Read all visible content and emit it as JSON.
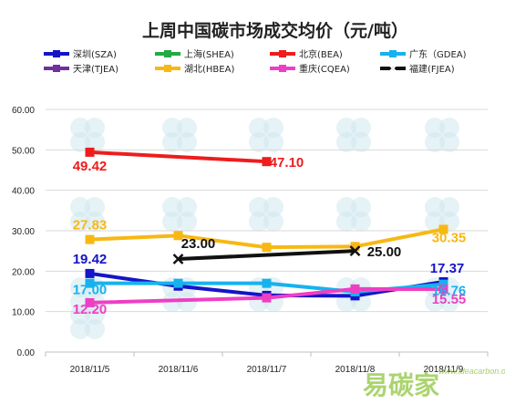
{
  "chart_data": {
    "type": "line",
    "title": "上周中国碳市场成交均价（元/吨）",
    "categories": [
      "2018/11/5",
      "2018/11/6",
      "2018/11/7",
      "2018/11/8",
      "2018/11/9"
    ],
    "ylim": [
      0,
      60
    ],
    "yticks": [
      "0.00",
      "10.00",
      "20.00",
      "30.00",
      "40.00",
      "50.00",
      "60.00"
    ],
    "ytick_values": [
      0,
      10,
      20,
      30,
      40,
      50,
      60
    ],
    "legend_placement": "top",
    "series": [
      {
        "name": "深圳(SZA)",
        "color": "#1414c8",
        "marker": "square",
        "values": [
          19.42,
          16.3,
          14.0,
          13.9,
          17.37
        ],
        "labels": [
          {
            "index": 0,
            "text": "19.42"
          },
          {
            "index": 4,
            "text": "17.37"
          }
        ]
      },
      {
        "name": "上海(SHEA)",
        "color": "#22aa44",
        "marker": "square",
        "values": [
          null,
          null,
          null,
          null,
          null
        ],
        "labels": []
      },
      {
        "name": "北京(BEA)",
        "color": "#ee1c1c",
        "marker": "square",
        "values": [
          49.42,
          null,
          47.1,
          null,
          null
        ],
        "labels": [
          {
            "index": 0,
            "text": "49.42"
          },
          {
            "index": 2,
            "text": "47.10"
          }
        ]
      },
      {
        "name": "广东（GDEA)",
        "color": "#17b2ee",
        "marker": "square",
        "values": [
          17.0,
          17.0,
          17.0,
          14.9,
          16.76
        ],
        "labels": [
          {
            "index": 0,
            "text": "17.00"
          },
          {
            "index": 4,
            "text": "16.76"
          }
        ]
      },
      {
        "name": "天津(TJEA)",
        "color": "#7030a0",
        "marker": "square",
        "values": [
          null,
          null,
          null,
          null,
          null
        ],
        "labels": []
      },
      {
        "name": "湖北(HBEA)",
        "color": "#f7b814",
        "marker": "square",
        "values": [
          27.83,
          28.8,
          25.9,
          26.1,
          30.35
        ],
        "labels": [
          {
            "index": 0,
            "text": "27.83"
          },
          {
            "index": 4,
            "text": "30.35"
          }
        ]
      },
      {
        "name": "重庆(CQEA)",
        "color": "#ee3fc4",
        "marker": "square",
        "values": [
          12.2,
          null,
          13.4,
          15.6,
          15.55
        ],
        "labels": [
          {
            "index": 0,
            "text": "12.20"
          },
          {
            "index": 4,
            "text": "15.55"
          }
        ]
      },
      {
        "name": "福建(FJEA)",
        "color": "#111111",
        "marker": "x",
        "values": [
          null,
          23.0,
          null,
          25.0,
          null
        ],
        "labels": [
          {
            "index": 1,
            "text": "23.00"
          },
          {
            "index": 3,
            "text": "25.00"
          }
        ]
      }
    ]
  },
  "watermark": {
    "brand": "易碳家",
    "url": "www.ideacarbon.org"
  }
}
